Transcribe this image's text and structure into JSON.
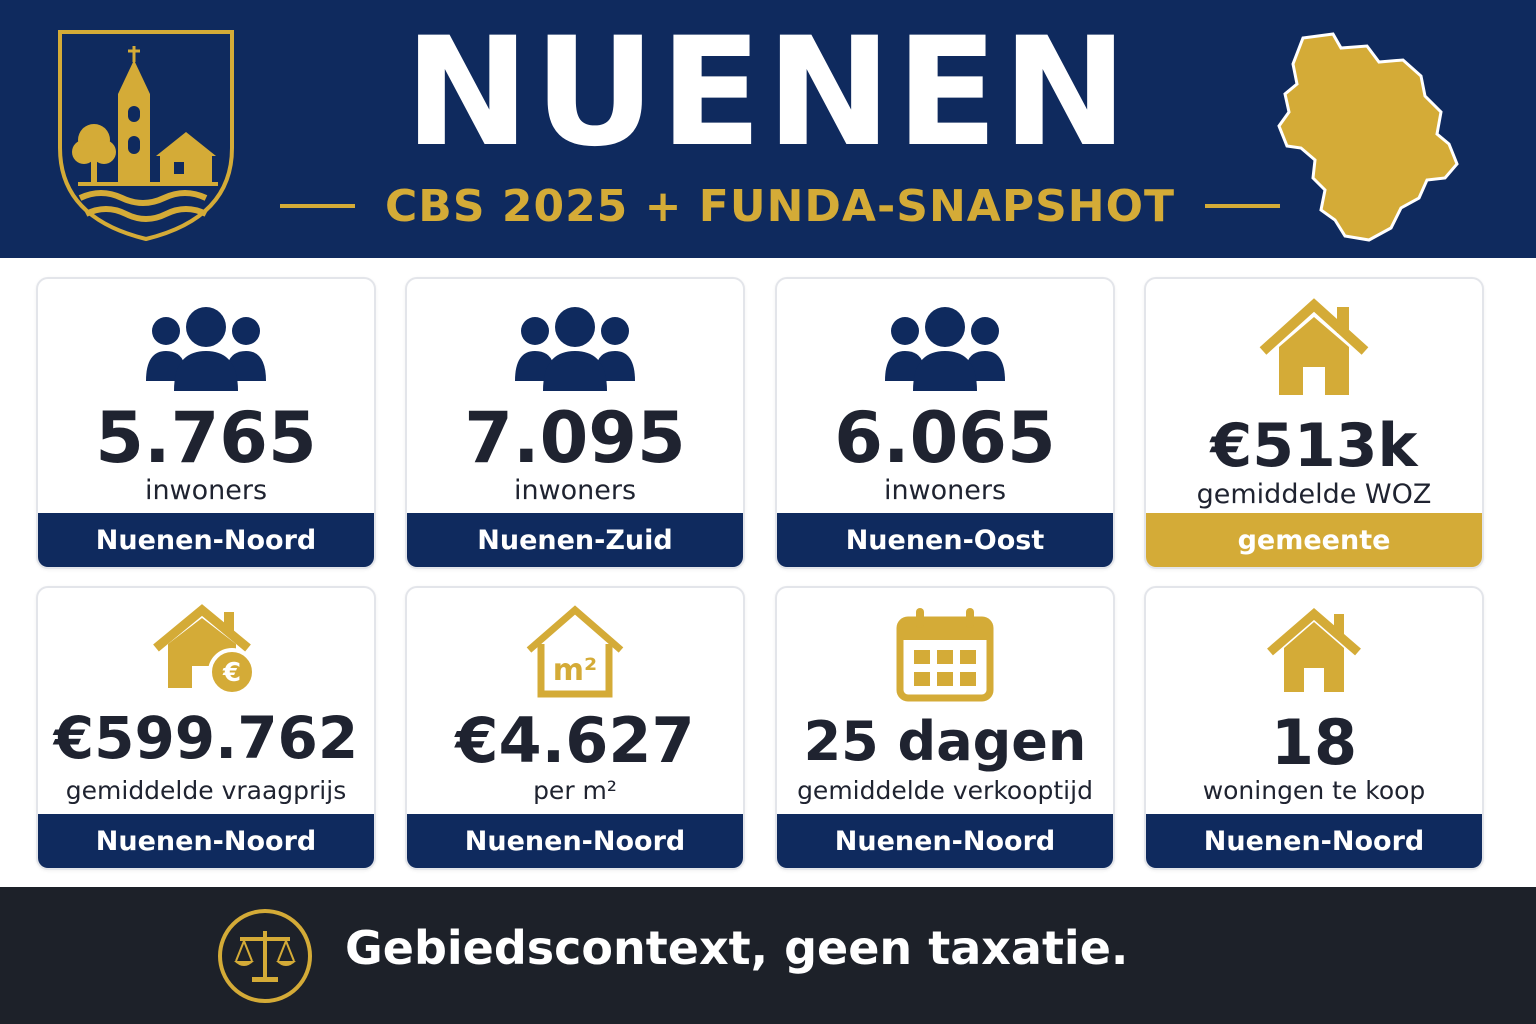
{
  "header": {
    "title": "NUENEN",
    "subtitle": "CBS 2025 + FUNDA-SNAPSHOT"
  },
  "colors": {
    "navy": "#0f2a5e",
    "gold": "#d4ab37",
    "dark": "#1d2129"
  },
  "cards": [
    {
      "icon": "people-icon",
      "value": "5.765",
      "label": "inwoners",
      "area": "Nuenen-Noord",
      "band": "navy"
    },
    {
      "icon": "people-icon",
      "value": "7.095",
      "label": "inwoners",
      "area": "Nuenen-Zuid",
      "band": "navy"
    },
    {
      "icon": "people-icon",
      "value": "6.065",
      "label": "inwoners",
      "area": "Nuenen-Oost",
      "band": "navy"
    },
    {
      "icon": "house-icon",
      "value": "€513k",
      "label": "gemiddelde WOZ",
      "area": "gemeente",
      "band": "gold"
    },
    {
      "icon": "house-euro-icon",
      "value": "€599.762",
      "label": "gemiddelde vraagprijs",
      "area": "Nuenen-Noord",
      "band": "navy"
    },
    {
      "icon": "house-m2-icon",
      "value": "€4.627",
      "label": "per m²",
      "area": "Nuenen-Noord",
      "band": "navy",
      "icon_text": "m²"
    },
    {
      "icon": "calendar-icon",
      "value": "25 dagen",
      "label": "gemiddelde verkooptijd",
      "area": "Nuenen-Noord",
      "band": "navy"
    },
    {
      "icon": "house-icon",
      "value": "18",
      "label": "woningen te koop",
      "area": "Nuenen-Noord",
      "band": "navy"
    }
  ],
  "footer": {
    "icon": "scale-icon",
    "text": "Gebiedscontext, geen taxatie."
  }
}
